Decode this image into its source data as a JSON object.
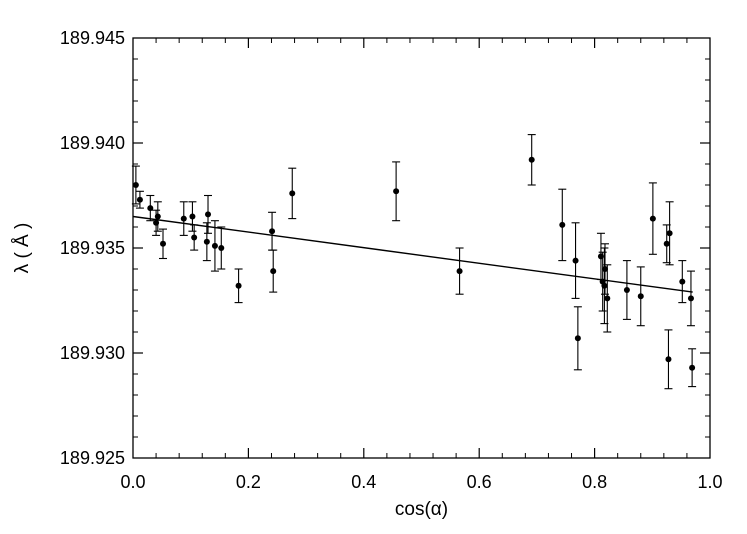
{
  "chart_data": {
    "type": "scatter",
    "title": "",
    "xlabel": "cos(α)",
    "ylabel": "λ ( Å )",
    "xlim": [
      0.0,
      1.0
    ],
    "ylim": [
      189.925,
      189.945
    ],
    "x_ticks": [
      "0.0",
      "0.2",
      "0.4",
      "0.6",
      "0.8",
      "1.0"
    ],
    "y_ticks": [
      "189.925",
      "189.930",
      "189.935",
      "189.940",
      "189.945"
    ],
    "grid": false,
    "colors": {
      "points": "#000000",
      "fit": "#000000",
      "axes": "#000000"
    },
    "points": [
      {
        "x": 0.005,
        "y": 189.938,
        "err": 0.0009
      },
      {
        "x": 0.012,
        "y": 189.9373,
        "err": 0.0004
      },
      {
        "x": 0.03,
        "y": 189.9369,
        "err": 0.0006
      },
      {
        "x": 0.04,
        "y": 189.9362,
        "err": 0.0006
      },
      {
        "x": 0.043,
        "y": 189.9365,
        "err": 0.0007
      },
      {
        "x": 0.052,
        "y": 189.9352,
        "err": 0.0007
      },
      {
        "x": 0.088,
        "y": 189.9364,
        "err": 0.0008
      },
      {
        "x": 0.103,
        "y": 189.9365,
        "err": 0.0007
      },
      {
        "x": 0.106,
        "y": 189.9355,
        "err": 0.0006
      },
      {
        "x": 0.128,
        "y": 189.9353,
        "err": 0.0009
      },
      {
        "x": 0.13,
        "y": 189.9366,
        "err": 0.0009
      },
      {
        "x": 0.142,
        "y": 189.9351,
        "err": 0.0012
      },
      {
        "x": 0.153,
        "y": 189.935,
        "err": 0.001
      },
      {
        "x": 0.183,
        "y": 189.9332,
        "err": 0.0008
      },
      {
        "x": 0.241,
        "y": 189.9358,
        "err": 0.0009
      },
      {
        "x": 0.243,
        "y": 189.9339,
        "err": 0.001
      },
      {
        "x": 0.276,
        "y": 189.9376,
        "err": 0.0012
      },
      {
        "x": 0.456,
        "y": 189.9377,
        "err": 0.0014
      },
      {
        "x": 0.566,
        "y": 189.9339,
        "err": 0.0011
      },
      {
        "x": 0.691,
        "y": 189.9392,
        "err": 0.0012
      },
      {
        "x": 0.744,
        "y": 189.9361,
        "err": 0.0017
      },
      {
        "x": 0.767,
        "y": 189.9344,
        "err": 0.0018
      },
      {
        "x": 0.771,
        "y": 189.9307,
        "err": 0.0015
      },
      {
        "x": 0.811,
        "y": 189.9346,
        "err": 0.0011
      },
      {
        "x": 0.814,
        "y": 189.9334,
        "err": 0.0014
      },
      {
        "x": 0.817,
        "y": 189.9332,
        "err": 0.0018
      },
      {
        "x": 0.818,
        "y": 189.934,
        "err": 0.0012
      },
      {
        "x": 0.822,
        "y": 189.9326,
        "err": 0.0016
      },
      {
        "x": 0.856,
        "y": 189.933,
        "err": 0.0014
      },
      {
        "x": 0.88,
        "y": 189.9327,
        "err": 0.0014
      },
      {
        "x": 0.901,
        "y": 189.9364,
        "err": 0.0017
      },
      {
        "x": 0.925,
        "y": 189.9352,
        "err": 0.0009
      },
      {
        "x": 0.928,
        "y": 189.9297,
        "err": 0.0014
      },
      {
        "x": 0.93,
        "y": 189.9357,
        "err": 0.0015
      },
      {
        "x": 0.952,
        "y": 189.9334,
        "err": 0.001
      },
      {
        "x": 0.967,
        "y": 189.9326,
        "err": 0.0013
      },
      {
        "x": 0.969,
        "y": 189.9293,
        "err": 0.0009
      }
    ],
    "fit_line": {
      "x": [
        0.0,
        0.97
      ],
      "y": [
        189.9365,
        189.9329
      ]
    }
  }
}
